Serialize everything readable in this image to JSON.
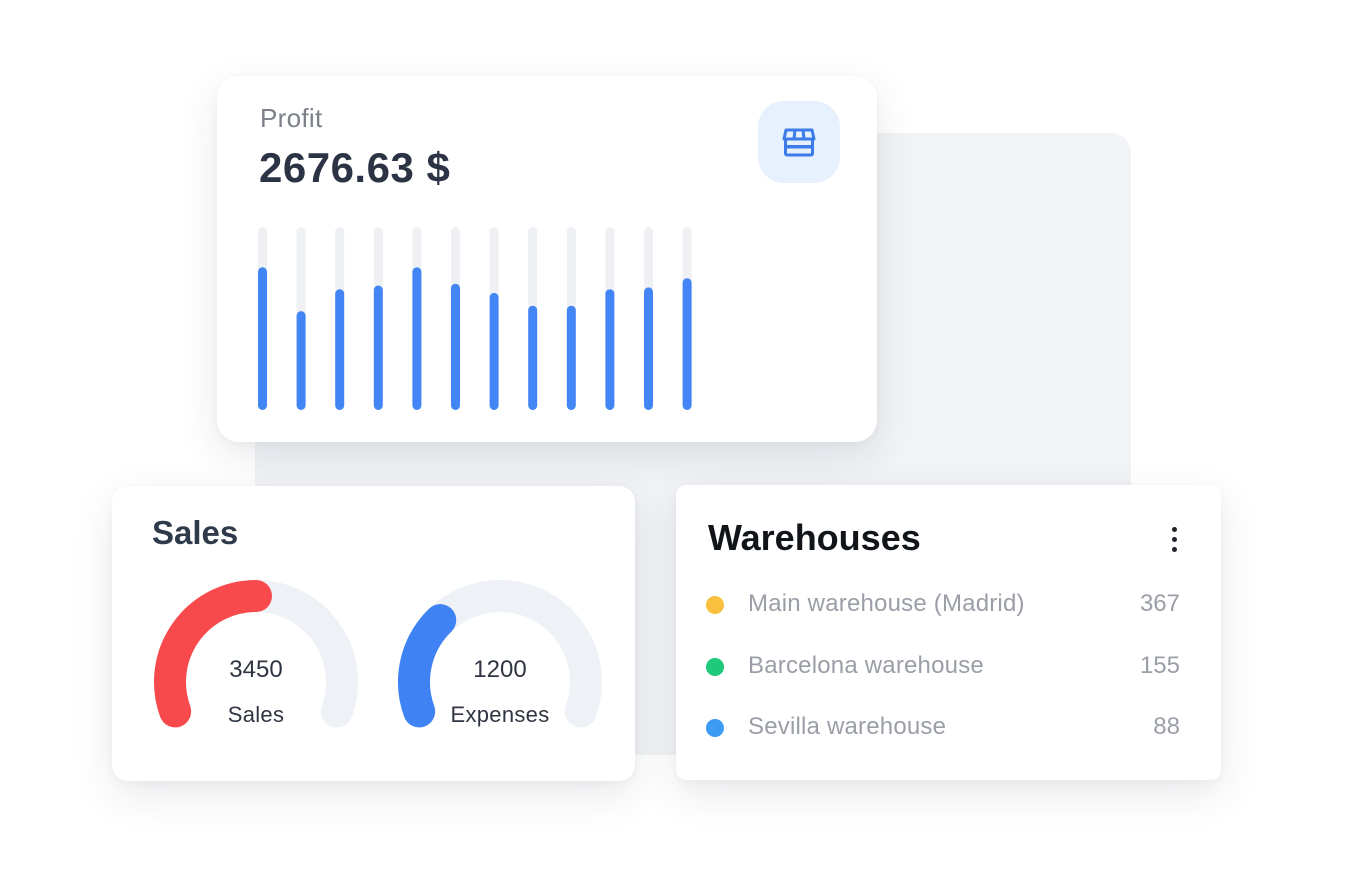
{
  "profit": {
    "label": "Profit",
    "value": "2676.63 $",
    "icon": "store-icon",
    "accent": "#4285f4",
    "track": "#eff0f3",
    "chart_data": {
      "type": "bar",
      "values": [
        0.78,
        0.54,
        0.66,
        0.68,
        0.78,
        0.69,
        0.64,
        0.57,
        0.57,
        0.66,
        0.67,
        0.72
      ],
      "ylim": [
        0,
        1
      ],
      "grid": false
    }
  },
  "sales": {
    "title": "Sales",
    "gauges": [
      {
        "value": "3450",
        "label": "Sales",
        "fill": 0.5,
        "color": "#f84a4d"
      },
      {
        "value": "1200",
        "label": "Expenses",
        "fill": 0.3,
        "color": "#3f82f4"
      }
    ],
    "track": "#eef1f5"
  },
  "warehouses": {
    "title": "Warehouses",
    "menu_icon": "more-vertical-icon",
    "items": [
      {
        "name": "Main warehouse (Madrid)",
        "count": "367",
        "color": "#f8c03c"
      },
      {
        "name": "Barcelona warehouse",
        "count": "155",
        "color": "#1ec97a"
      },
      {
        "name": "Sevilla warehouse",
        "count": "88",
        "color": "#3b9bf5"
      }
    ]
  }
}
